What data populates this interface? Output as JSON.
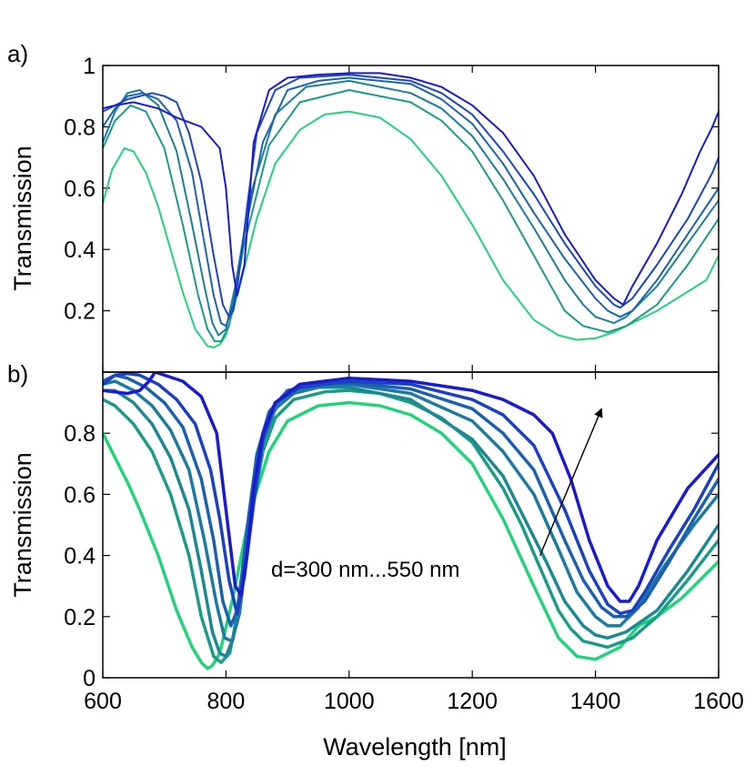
{
  "figure": {
    "shared_xlabel": "Wavelength [nm]",
    "annotation": "d=300 nm...550 nm"
  },
  "chart_data": [
    {
      "type": "line",
      "panel_label": "a)",
      "xlabel": "",
      "ylabel": "Transmission",
      "xlim": [
        600,
        1600
      ],
      "ylim": [
        0,
        1
      ],
      "y_ticks": [
        "0.2",
        "0.4",
        "0.6",
        "0.8",
        "1"
      ],
      "x_ticks": [],
      "grid": false,
      "colors": [
        "#1a1ad0",
        "#1a46c2",
        "#1a64ad",
        "#1a7f9a",
        "#1a9c86",
        "#20d47a"
      ],
      "series": [
        {
          "x": [
            600,
            620,
            650,
            690,
            720,
            760,
            790,
            800,
            810,
            818,
            830,
            845,
            870,
            900,
            950,
            1000,
            1050,
            1100,
            1150,
            1200,
            1250,
            1300,
            1350,
            1400,
            1430,
            1445,
            1460,
            1500,
            1540,
            1570,
            1590,
            1600
          ],
          "y": [
            0.86,
            0.87,
            0.88,
            0.86,
            0.83,
            0.8,
            0.73,
            0.6,
            0.35,
            0.25,
            0.35,
            0.75,
            0.92,
            0.96,
            0.97,
            0.975,
            0.975,
            0.96,
            0.93,
            0.87,
            0.78,
            0.64,
            0.45,
            0.3,
            0.24,
            0.22,
            0.28,
            0.42,
            0.58,
            0.72,
            0.8,
            0.85
          ]
        },
        {
          "x": [
            600,
            640,
            680,
            700,
            720,
            740,
            760,
            780,
            795,
            805,
            812,
            820,
            835,
            850,
            880,
            920,
            1000,
            1100,
            1150,
            1200,
            1250,
            1300,
            1350,
            1400,
            1430,
            1440,
            1460,
            1500,
            1550,
            1590,
            1600
          ],
          "y": [
            0.85,
            0.89,
            0.91,
            0.9,
            0.88,
            0.78,
            0.62,
            0.38,
            0.22,
            0.18,
            0.2,
            0.3,
            0.55,
            0.78,
            0.92,
            0.96,
            0.97,
            0.95,
            0.91,
            0.84,
            0.72,
            0.58,
            0.42,
            0.28,
            0.22,
            0.21,
            0.24,
            0.35,
            0.5,
            0.65,
            0.7
          ]
        },
        {
          "x": [
            600,
            620,
            640,
            665,
            690,
            720,
            745,
            765,
            780,
            792,
            800,
            812,
            830,
            860,
            900,
            950,
            1000,
            1100,
            1150,
            1200,
            1250,
            1300,
            1350,
            1400,
            1420,
            1440,
            1460,
            1500,
            1550,
            1600
          ],
          "y": [
            0.8,
            0.86,
            0.9,
            0.91,
            0.89,
            0.82,
            0.65,
            0.42,
            0.25,
            0.16,
            0.15,
            0.22,
            0.45,
            0.75,
            0.92,
            0.95,
            0.96,
            0.94,
            0.89,
            0.81,
            0.68,
            0.52,
            0.37,
            0.24,
            0.2,
            0.18,
            0.2,
            0.3,
            0.45,
            0.6
          ]
        },
        {
          "x": [
            600,
            620,
            640,
            660,
            690,
            720,
            745,
            765,
            778,
            788,
            800,
            815,
            840,
            880,
            930,
            1000,
            1100,
            1150,
            1200,
            1250,
            1300,
            1350,
            1380,
            1400,
            1430,
            1450,
            1500,
            1550,
            1600
          ],
          "y": [
            0.75,
            0.85,
            0.91,
            0.92,
            0.87,
            0.72,
            0.48,
            0.28,
            0.16,
            0.12,
            0.14,
            0.28,
            0.58,
            0.84,
            0.93,
            0.95,
            0.91,
            0.86,
            0.77,
            0.63,
            0.47,
            0.3,
            0.22,
            0.18,
            0.16,
            0.18,
            0.28,
            0.42,
            0.56
          ]
        },
        {
          "x": [
            600,
            620,
            645,
            670,
            700,
            730,
            755,
            770,
            782,
            792,
            805,
            830,
            870,
            920,
            1000,
            1100,
            1150,
            1200,
            1250,
            1300,
            1350,
            1380,
            1420,
            1450,
            1500,
            1550,
            1600
          ],
          "y": [
            0.73,
            0.82,
            0.87,
            0.85,
            0.73,
            0.48,
            0.25,
            0.14,
            0.1,
            0.1,
            0.15,
            0.42,
            0.74,
            0.88,
            0.92,
            0.88,
            0.82,
            0.72,
            0.56,
            0.38,
            0.2,
            0.15,
            0.13,
            0.15,
            0.22,
            0.35,
            0.5
          ]
        },
        {
          "x": [
            600,
            615,
            635,
            650,
            670,
            690,
            710,
            730,
            750,
            770,
            780,
            790,
            800,
            820,
            850,
            880,
            920,
            960,
            1000,
            1050,
            1100,
            1150,
            1200,
            1250,
            1300,
            1340,
            1370,
            1400,
            1430,
            1460,
            1500,
            1540,
            1580,
            1600
          ],
          "y": [
            0.55,
            0.66,
            0.73,
            0.72,
            0.65,
            0.54,
            0.4,
            0.26,
            0.14,
            0.085,
            0.08,
            0.09,
            0.12,
            0.26,
            0.5,
            0.68,
            0.79,
            0.84,
            0.85,
            0.83,
            0.76,
            0.64,
            0.48,
            0.3,
            0.17,
            0.12,
            0.105,
            0.11,
            0.13,
            0.16,
            0.2,
            0.25,
            0.3,
            0.38
          ]
        }
      ]
    },
    {
      "type": "line",
      "panel_label": "b)",
      "xlabel": "Wavelength [nm]",
      "ylabel": "Transmission",
      "xlim": [
        600,
        1600
      ],
      "ylim": [
        0,
        1
      ],
      "y_ticks": [
        "0",
        "0.2",
        "0.4",
        "0.6",
        "0.8"
      ],
      "x_ticks": [
        "600",
        "800",
        "1000",
        "1200",
        "1400",
        "1600"
      ],
      "grid": false,
      "colors": [
        "#1a1ad0",
        "#1a40c4",
        "#1a60b0",
        "#1a7aa0",
        "#1a8a92",
        "#1a9c86",
        "#20d47a"
      ],
      "series": [
        {
          "x": [
            600,
            640,
            660,
            675,
            685,
            700,
            730,
            760,
            785,
            800,
            815,
            825,
            835,
            845,
            860,
            880,
            920,
            1000,
            1050,
            1100,
            1200,
            1250,
            1300,
            1330,
            1360,
            1390,
            1420,
            1440,
            1455,
            1470,
            1500,
            1550,
            1600
          ],
          "y": [
            0.94,
            0.93,
            0.94,
            0.97,
            1.0,
            0.99,
            0.97,
            0.92,
            0.8,
            0.55,
            0.3,
            0.27,
            0.42,
            0.62,
            0.8,
            0.9,
            0.96,
            0.98,
            0.975,
            0.97,
            0.94,
            0.91,
            0.86,
            0.8,
            0.65,
            0.45,
            0.3,
            0.25,
            0.25,
            0.3,
            0.45,
            0.62,
            0.73
          ]
        },
        {
          "x": [
            600,
            620,
            640,
            660,
            690,
            720,
            750,
            775,
            790,
            805,
            818,
            830,
            845,
            860,
            880,
            920,
            1000,
            1100,
            1200,
            1250,
            1300,
            1350,
            1390,
            1420,
            1440,
            1460,
            1480,
            1520,
            1560,
            1600
          ],
          "y": [
            0.96,
            0.99,
            0.995,
            0.99,
            0.96,
            0.91,
            0.83,
            0.68,
            0.52,
            0.32,
            0.21,
            0.33,
            0.57,
            0.78,
            0.9,
            0.95,
            0.97,
            0.96,
            0.91,
            0.86,
            0.76,
            0.55,
            0.35,
            0.24,
            0.21,
            0.22,
            0.28,
            0.42,
            0.55,
            0.7
          ]
        },
        {
          "x": [
            600,
            620,
            640,
            670,
            700,
            730,
            760,
            780,
            795,
            808,
            820,
            835,
            850,
            870,
            900,
            950,
            1000,
            1100,
            1200,
            1250,
            1300,
            1350,
            1380,
            1410,
            1430,
            1450,
            1480,
            1520,
            1560,
            1600
          ],
          "y": [
            0.97,
            0.99,
            0.98,
            0.95,
            0.9,
            0.82,
            0.65,
            0.45,
            0.25,
            0.17,
            0.23,
            0.5,
            0.73,
            0.87,
            0.94,
            0.96,
            0.965,
            0.945,
            0.88,
            0.8,
            0.68,
            0.45,
            0.32,
            0.23,
            0.2,
            0.2,
            0.25,
            0.38,
            0.52,
            0.65
          ]
        },
        {
          "x": [
            600,
            620,
            650,
            680,
            710,
            740,
            765,
            785,
            798,
            810,
            822,
            840,
            860,
            880,
            910,
            960,
            1000,
            1100,
            1200,
            1250,
            1300,
            1340,
            1370,
            1400,
            1420,
            1440,
            1470,
            1510,
            1560,
            1600
          ],
          "y": [
            0.96,
            0.97,
            0.94,
            0.89,
            0.81,
            0.68,
            0.45,
            0.24,
            0.13,
            0.12,
            0.21,
            0.52,
            0.77,
            0.88,
            0.93,
            0.955,
            0.96,
            0.93,
            0.84,
            0.74,
            0.6,
            0.42,
            0.28,
            0.2,
            0.17,
            0.17,
            0.23,
            0.36,
            0.5,
            0.6
          ]
        },
        {
          "x": [
            600,
            620,
            650,
            680,
            710,
            740,
            760,
            778,
            790,
            800,
            812,
            830,
            850,
            870,
            900,
            950,
            1000,
            1100,
            1200,
            1250,
            1290,
            1320,
            1350,
            1380,
            1400,
            1420,
            1450,
            1500,
            1550,
            1600
          ],
          "y": [
            0.94,
            0.94,
            0.9,
            0.83,
            0.72,
            0.55,
            0.35,
            0.15,
            0.08,
            0.07,
            0.13,
            0.4,
            0.7,
            0.85,
            0.93,
            0.95,
            0.95,
            0.91,
            0.78,
            0.66,
            0.5,
            0.38,
            0.25,
            0.17,
            0.14,
            0.13,
            0.15,
            0.22,
            0.35,
            0.5
          ]
        },
        {
          "x": [
            600,
            620,
            650,
            680,
            710,
            740,
            760,
            780,
            792,
            806,
            820,
            840,
            860,
            880,
            910,
            960,
            1000,
            1050,
            1100,
            1150,
            1200,
            1250,
            1280,
            1310,
            1340,
            1360,
            1380,
            1420,
            1460,
            1500,
            1550,
            1600
          ],
          "y": [
            0.91,
            0.89,
            0.83,
            0.74,
            0.6,
            0.4,
            0.2,
            0.07,
            0.05,
            0.08,
            0.22,
            0.52,
            0.74,
            0.85,
            0.91,
            0.935,
            0.94,
            0.93,
            0.9,
            0.85,
            0.77,
            0.62,
            0.5,
            0.36,
            0.22,
            0.16,
            0.12,
            0.1,
            0.13,
            0.2,
            0.32,
            0.45
          ]
        },
        {
          "x": [
            600,
            620,
            640,
            660,
            690,
            720,
            745,
            760,
            770,
            778,
            790,
            810,
            840,
            870,
            900,
            950,
            1000,
            1050,
            1100,
            1150,
            1200,
            1250,
            1300,
            1340,
            1370,
            1400,
            1440,
            1470,
            1500,
            1540,
            1600
          ],
          "y": [
            0.8,
            0.72,
            0.64,
            0.55,
            0.4,
            0.22,
            0.1,
            0.05,
            0.03,
            0.04,
            0.08,
            0.25,
            0.55,
            0.74,
            0.84,
            0.89,
            0.9,
            0.89,
            0.86,
            0.8,
            0.7,
            0.52,
            0.3,
            0.13,
            0.07,
            0.06,
            0.1,
            0.17,
            0.2,
            0.26,
            0.38
          ]
        }
      ],
      "annotation_arrow": {
        "from": [
          1310,
          0.4
        ],
        "to": [
          1410,
          0.88
        ]
      }
    }
  ]
}
